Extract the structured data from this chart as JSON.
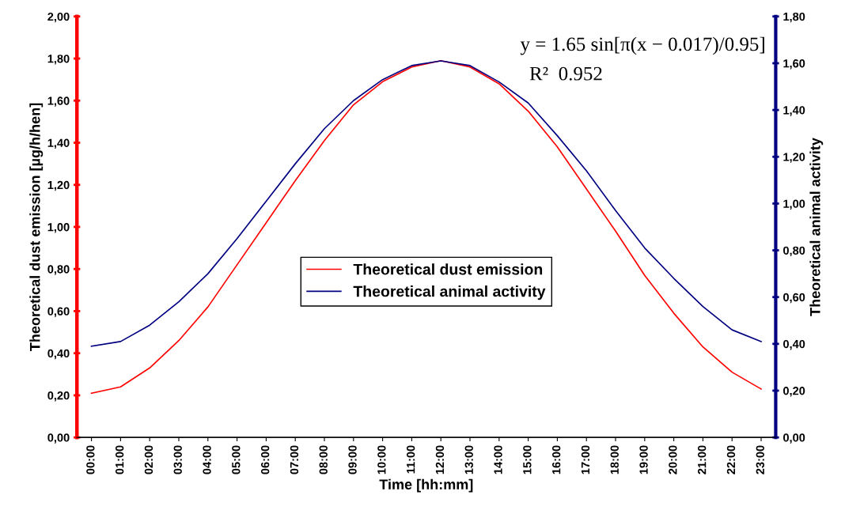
{
  "chart_data": {
    "type": "line",
    "xlabel": "Time [hh:mm]",
    "ylabel": "Theoretical dust emission [µg/h/hen]",
    "y2label": "Theoretical animal activity",
    "categories": [
      "00:00",
      "01:00",
      "02:00",
      "03:00",
      "04:00",
      "05:00",
      "06:00",
      "07:00",
      "08:00",
      "09:00",
      "10:00",
      "11:00",
      "12:00",
      "13:00",
      "14:00",
      "15:00",
      "16:00",
      "17:00",
      "18:00",
      "19:00",
      "20:00",
      "21:00",
      "22:00",
      "23:00"
    ],
    "series": [
      {
        "name": "Theoretical dust emission",
        "color": "#ff0000",
        "values": [
          0.21,
          0.24,
          0.33,
          0.46,
          0.62,
          0.82,
          1.02,
          1.22,
          1.41,
          1.58,
          1.69,
          1.76,
          1.79,
          1.76,
          1.68,
          1.55,
          1.38,
          1.18,
          0.98,
          0.77,
          0.59,
          0.43,
          0.31,
          0.23
        ]
      },
      {
        "name": "Theoretical animal activity",
        "color": "#000080",
        "axis": "y2",
        "values": [
          0.39,
          0.41,
          0.48,
          0.58,
          0.7,
          0.85,
          1.01,
          1.17,
          1.32,
          1.44,
          1.53,
          1.59,
          1.61,
          1.59,
          1.52,
          1.43,
          1.29,
          1.14,
          0.97,
          0.81,
          0.68,
          0.56,
          0.46,
          0.41
        ]
      }
    ],
    "ylim": [
      0,
      2
    ],
    "yticks": [
      {
        "value": 0,
        "label": "0,00"
      },
      {
        "value": 0.2,
        "label": "0,20"
      },
      {
        "value": 0.4,
        "label": "0,40"
      },
      {
        "value": 0.6,
        "label": "0,60"
      },
      {
        "value": 0.8,
        "label": "0,80"
      },
      {
        "value": 1.0,
        "label": "1,00"
      },
      {
        "value": 1.2,
        "label": "1,20"
      },
      {
        "value": 1.4,
        "label": "1,40"
      },
      {
        "value": 1.6,
        "label": "1,60"
      },
      {
        "value": 1.8,
        "label": "1,80"
      },
      {
        "value": 2.0,
        "label": "2,00"
      }
    ],
    "y2lim": [
      0,
      1.8
    ],
    "y2ticks": [
      {
        "value": 0,
        "label": "0,00"
      },
      {
        "value": 0.2,
        "label": "0,20"
      },
      {
        "value": 0.4,
        "label": "0,40"
      },
      {
        "value": 0.6,
        "label": "0,60"
      },
      {
        "value": 0.8,
        "label": "0,80"
      },
      {
        "value": 1.0,
        "label": "1,00"
      },
      {
        "value": 1.2,
        "label": "1,20"
      },
      {
        "value": 1.4,
        "label": "1,40"
      },
      {
        "value": 1.6,
        "label": "1,60"
      },
      {
        "value": 1.8,
        "label": "1,80"
      }
    ],
    "annotations": [
      "y = 1.65 sin[π(x − 0.017)/0.95]",
      "R²  0.952"
    ],
    "legend": "center",
    "grid": false,
    "marker": "none",
    "line_style": "solid"
  }
}
